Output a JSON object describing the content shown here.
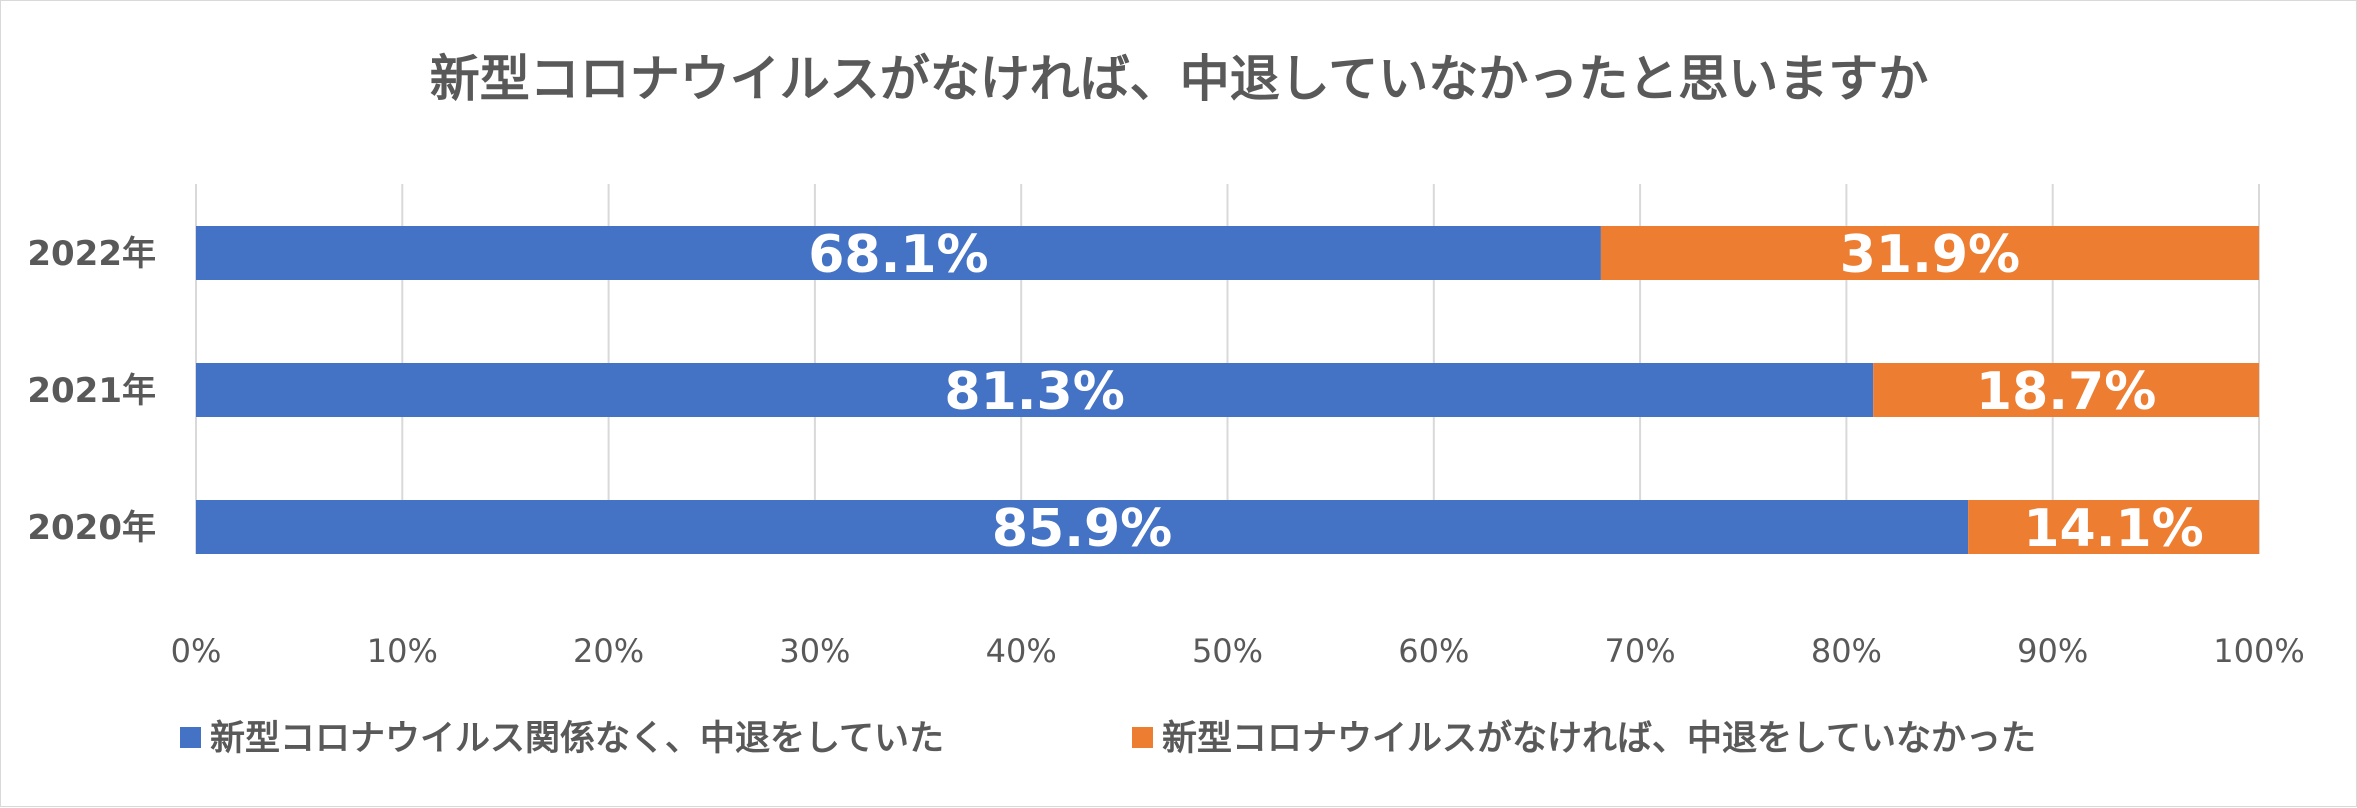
{
  "chart_data": {
    "type": "bar",
    "orientation": "horizontal",
    "stacked": true,
    "title": "新型コロナウイルスがなければ、中退していなかったと思いますか",
    "categories": [
      "2022年",
      "2021年",
      "2020年"
    ],
    "series": [
      {
        "name": "新型コロナウイルス関係なく、中退をしていた",
        "color": "#4472C4",
        "values": [
          68.1,
          81.3,
          85.9
        ],
        "labels": [
          "68.1%",
          "81.3%",
          "85.9%"
        ]
      },
      {
        "name": "新型コロナウイルスがなければ、中退をしていなかった",
        "color": "#ED7D31",
        "values": [
          31.9,
          18.7,
          14.1
        ],
        "labels": [
          "31.9%",
          "18.7%",
          "14.1%"
        ]
      }
    ],
    "xlim": [
      0,
      100
    ],
    "xticks": [
      0,
      10,
      20,
      30,
      40,
      50,
      60,
      70,
      80,
      90,
      100
    ],
    "xtick_labels": [
      "0%",
      "10%",
      "20%",
      "30%",
      "40%",
      "50%",
      "60%",
      "70%",
      "80%",
      "90%",
      "100%"
    ],
    "grid": true,
    "legend_position": "bottom",
    "gridline_color": "#D9D9D9",
    "text_color": "#595959",
    "label_color": "#FFFFFF"
  }
}
